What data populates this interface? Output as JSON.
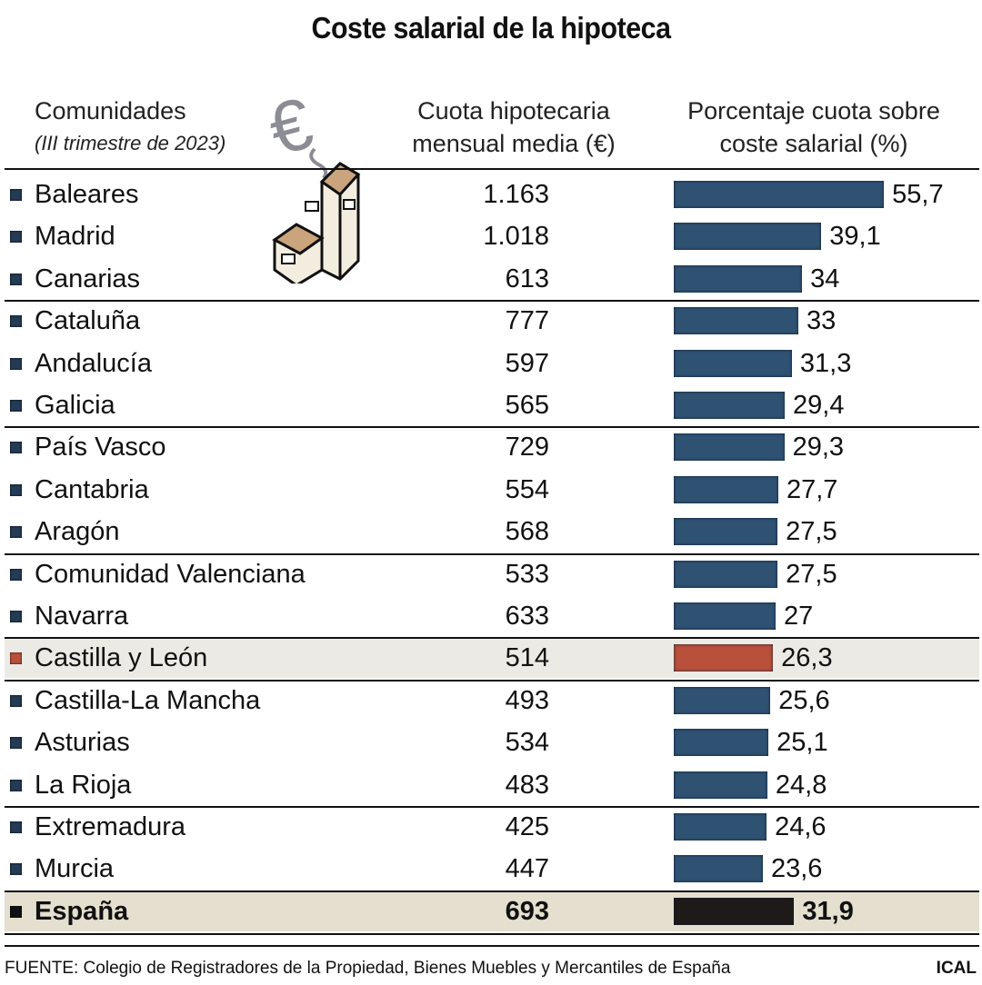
{
  "title": "Coste salarial de la hipoteca",
  "headers": {
    "region": "Comunidades",
    "period": "(III trimestre de 2023)",
    "cuota": "Cuota hipotecaria mensual media (€)",
    "porcentaje": "Porcentaje cuota sobre coste salarial (%)"
  },
  "colors": {
    "default": "#2f5273",
    "highlight": "#b8503c",
    "total": "#1e1a1a"
  },
  "chart_data": {
    "type": "bar",
    "orientation": "horizontal",
    "title": "Coste salarial de la hipoteca",
    "categories": [
      "Baleares",
      "Madrid",
      "Canarias",
      "Cataluña",
      "Andalucía",
      "Galicia",
      "País Vasco",
      "Cantabria",
      "Aragón",
      "Comunidad Valenciana",
      "Navarra",
      "Castilla y León",
      "Castilla-La Mancha",
      "Asturias",
      "La Rioja",
      "Extremadura",
      "Murcia",
      "España"
    ],
    "cuota_labels": [
      "1.163",
      "1.018",
      "613",
      "777",
      "597",
      "565",
      "729",
      "554",
      "568",
      "533",
      "633",
      "514",
      "493",
      "534",
      "483",
      "425",
      "447",
      "693"
    ],
    "cuota": [
      1163,
      1018,
      613,
      777,
      597,
      565,
      729,
      554,
      568,
      533,
      633,
      514,
      493,
      534,
      483,
      425,
      447,
      693
    ],
    "value_labels": [
      "55,7",
      "39,1",
      "34",
      "33",
      "31,3",
      "29,4",
      "29,3",
      "27,7",
      "27,5",
      "27,5",
      "27",
      "26,3",
      "25,6",
      "25,1",
      "24,8",
      "24,6",
      "23,6",
      "31,9"
    ],
    "values": [
      55.7,
      39.1,
      34,
      33,
      31.3,
      29.4,
      29.3,
      27.7,
      27.5,
      27.5,
      27,
      26.3,
      25.6,
      25.1,
      24.8,
      24.6,
      23.6,
      31.9
    ],
    "highlight": "Castilla y León",
    "total": "España",
    "grid": false
  },
  "footer": {
    "source": "FUENTE: Colegio de Registradores de la Propiedad, Bienes Muebles y Mercantiles de España",
    "credit": "ICAL"
  }
}
